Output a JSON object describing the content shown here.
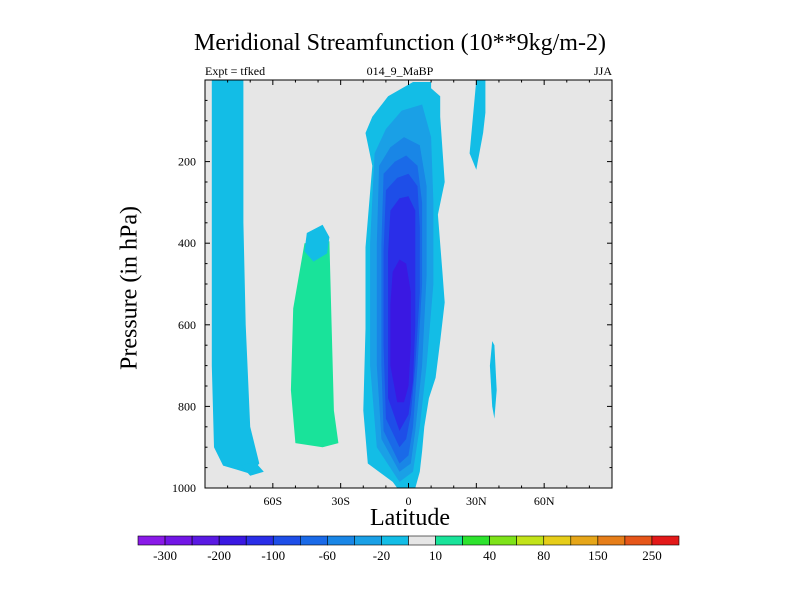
{
  "header": {
    "title": "Meridional Streamfunction (10**9kg/m-2)",
    "left": "Expt = tfked",
    "center": "014_9_MaBP",
    "right": "JJA"
  },
  "chart_data": {
    "type": "heatmap",
    "title": "Meridional Streamfunction (10**9kg/m-2)",
    "xlabel": "Latitude",
    "ylabel": "Pressure (in hPa)",
    "xlim": [
      -90,
      90
    ],
    "ylim": [
      1000,
      0
    ],
    "y_inverted": true,
    "x_ticks": [
      -60,
      -30,
      0,
      30,
      60
    ],
    "x_tick_labels": [
      "60S",
      "30S",
      "0",
      "30N",
      "60N"
    ],
    "y_ticks": [
      200,
      400,
      600,
      800,
      1000
    ],
    "y_tick_labels": [
      "200",
      "400",
      "600",
      "800",
      "1000"
    ],
    "grid": false,
    "background": "#e6e6e6",
    "colorbar": {
      "levels": [
        -300,
        -250,
        -200,
        -150,
        -100,
        -80,
        -60,
        -40,
        -20,
        -10,
        10,
        20,
        40,
        60,
        80,
        100,
        150,
        200,
        250,
        300
      ],
      "colors": [
        "#8a1ae8",
        "#7216e6",
        "#5a19e3",
        "#3a18e2",
        "#2a2ee8",
        "#1e4ee8",
        "#1a6ae8",
        "#1986e6",
        "#1aa0e6",
        "#13bde6",
        "#e6e6e6",
        "#19e39a",
        "#2ee32e",
        "#7ee319",
        "#c2e319",
        "#e6cd19",
        "#e6a619",
        "#e67e19",
        "#e65619",
        "#e31919"
      ],
      "labels": [
        "-300",
        "-200",
        "-100",
        "-60",
        "-20",
        "10",
        "40",
        "80",
        "150",
        "250"
      ]
    },
    "regions": [
      {
        "name": "NH deep cell edge",
        "level": -10,
        "points": [
          [
            -5,
            1000
          ],
          [
            -7,
            985
          ],
          [
            -18,
            940
          ],
          [
            -20,
            810
          ],
          [
            -19,
            610
          ],
          [
            -19,
            410
          ],
          [
            -16,
            210
          ],
          [
            -19,
            130
          ],
          [
            -16,
            90
          ],
          [
            -9,
            40
          ],
          [
            2,
            5
          ],
          [
            10,
            5
          ],
          [
            10,
            20
          ],
          [
            14,
            40
          ],
          [
            14,
            90
          ],
          [
            16,
            250
          ],
          [
            13,
            330
          ],
          [
            15,
            470
          ],
          [
            16,
            545
          ],
          [
            14,
            640
          ],
          [
            12,
            730
          ],
          [
            9,
            780
          ],
          [
            7,
            850
          ],
          [
            6,
            910
          ],
          [
            5,
            960
          ],
          [
            3,
            1000
          ]
        ]
      },
      {
        "name": "NH deep cell -20",
        "level": -20,
        "points": [
          [
            -4,
            985
          ],
          [
            -14,
            900
          ],
          [
            -17,
            700
          ],
          [
            -17,
            400
          ],
          [
            -15,
            180
          ],
          [
            -10,
            120
          ],
          [
            -3,
            75
          ],
          [
            6,
            60
          ],
          [
            10,
            140
          ],
          [
            11,
            300
          ],
          [
            11,
            500
          ],
          [
            8,
            700
          ],
          [
            5,
            850
          ],
          [
            2,
            960
          ]
        ]
      },
      {
        "name": "NH deep cell -40",
        "level": -40,
        "points": [
          [
            -4,
            960
          ],
          [
            -12,
            880
          ],
          [
            -14,
            700
          ],
          [
            -14,
            400
          ],
          [
            -13,
            210
          ],
          [
            -8,
            165
          ],
          [
            -2,
            140
          ],
          [
            5,
            160
          ],
          [
            8,
            260
          ],
          [
            8,
            480
          ],
          [
            6,
            700
          ],
          [
            3,
            860
          ],
          [
            1,
            940
          ]
        ]
      },
      {
        "name": "NH deep cell -60",
        "level": -60,
        "points": [
          [
            -4,
            940
          ],
          [
            -11,
            860
          ],
          [
            -12,
            700
          ],
          [
            -12,
            400
          ],
          [
            -11,
            230
          ],
          [
            -6,
            200
          ],
          [
            -1,
            185
          ],
          [
            4,
            210
          ],
          [
            6,
            300
          ],
          [
            6,
            500
          ],
          [
            4,
            700
          ],
          [
            2,
            850
          ],
          [
            0,
            920
          ]
        ]
      },
      {
        "name": "NH deep cell -80",
        "level": -80,
        "points": [
          [
            -4,
            900
          ],
          [
            -10,
            830
          ],
          [
            -11,
            650
          ],
          [
            -11,
            420
          ],
          [
            -10,
            270
          ],
          [
            -5,
            240
          ],
          [
            0,
            230
          ],
          [
            4,
            260
          ],
          [
            5,
            360
          ],
          [
            5,
            520
          ],
          [
            3,
            700
          ],
          [
            1,
            820
          ],
          [
            -1,
            880
          ]
        ]
      },
      {
        "name": "NH deep cell -100",
        "level": -100,
        "points": [
          [
            -4,
            860
          ],
          [
            -9,
            780
          ],
          [
            -9,
            600
          ],
          [
            -9,
            420
          ],
          [
            -8,
            320
          ],
          [
            -4,
            290
          ],
          [
            0,
            285
          ],
          [
            3,
            320
          ],
          [
            3,
            450
          ],
          [
            3,
            600
          ],
          [
            2,
            740
          ],
          [
            0,
            820
          ]
        ]
      },
      {
        "name": "NH deep cell -150",
        "level": -150,
        "points": [
          [
            -5,
            790
          ],
          [
            -8,
            700
          ],
          [
            -8,
            550
          ],
          [
            -7,
            470
          ],
          [
            -4,
            440
          ],
          [
            -1,
            450
          ],
          [
            1,
            520
          ],
          [
            1,
            650
          ],
          [
            0,
            750
          ],
          [
            -2,
            790
          ]
        ]
      },
      {
        "name": "SH subtropical band",
        "level": -10,
        "points": [
          [
            -87,
            0
          ],
          [
            -73,
            0
          ],
          [
            -73,
            350
          ],
          [
            -72,
            600
          ],
          [
            -70,
            850
          ],
          [
            -66,
            940
          ],
          [
            -70,
            965
          ],
          [
            -76,
            955
          ],
          [
            -82,
            945
          ],
          [
            -86,
            900
          ],
          [
            -87,
            700
          ],
          [
            -87,
            400
          ]
        ]
      },
      {
        "name": "SH Ferrel lower rim",
        "level": -10,
        "points": [
          [
            -74,
            945
          ],
          [
            -68,
            935
          ],
          [
            -64,
            960
          ],
          [
            -70,
            970
          ]
        ]
      },
      {
        "name": "SH Ferrel cell",
        "level": 10,
        "points": [
          [
            -65,
            0
          ],
          [
            -60,
            0
          ],
          [
            -60,
            120
          ],
          [
            -55,
            170
          ],
          [
            -50,
            220
          ],
          [
            -30,
            230
          ],
          [
            -28,
            400
          ],
          [
            -27,
            700
          ],
          [
            -25,
            935
          ],
          [
            -30,
            955
          ],
          [
            -38,
            965
          ],
          [
            -52,
            950
          ],
          [
            -55,
            860
          ],
          [
            -57,
            620
          ],
          [
            -61,
            400
          ],
          [
            -63,
            200
          ]
        ]
      },
      {
        "name": "SH Ferrel core",
        "level": 20,
        "points": [
          [
            -46,
            400
          ],
          [
            -35,
            395
          ],
          [
            -34,
            600
          ],
          [
            -33,
            810
          ],
          [
            -31,
            890
          ],
          [
            -38,
            900
          ],
          [
            -50,
            890
          ],
          [
            -52,
            760
          ],
          [
            -51,
            560
          ]
        ]
      },
      {
        "name": "Tropical upper blob",
        "level": -10,
        "points": [
          [
            -45,
            375
          ],
          [
            -38,
            355
          ],
          [
            -35,
            385
          ],
          [
            -36,
            425
          ],
          [
            -42,
            445
          ],
          [
            -46,
            420
          ]
        ]
      },
      {
        "name": "NH upper positive",
        "level": 10,
        "points": [
          [
            30,
            0
          ],
          [
            38,
            0
          ],
          [
            36,
            50
          ],
          [
            34,
            120
          ],
          [
            31,
            140
          ],
          [
            30,
            60
          ]
        ]
      },
      {
        "name": "NH upper negative",
        "level": -10,
        "points": [
          [
            30,
            0
          ],
          [
            34,
            0
          ],
          [
            34,
            80
          ],
          [
            33,
            130
          ],
          [
            30,
            220
          ],
          [
            27,
            180
          ]
        ]
      },
      {
        "name": "NH polar negative thin",
        "level": -10,
        "points": [
          [
            37,
            640
          ],
          [
            38,
            650
          ],
          [
            39,
            760
          ],
          [
            38,
            830
          ],
          [
            37,
            800
          ],
          [
            36,
            700
          ]
        ]
      },
      {
        "name": "NH polar positive thin",
        "level": 10,
        "points": [
          [
            48,
            330
          ],
          [
            49,
            340
          ],
          [
            49,
            600
          ],
          [
            49,
            800
          ],
          [
            48,
            830
          ],
          [
            47,
            700
          ],
          [
            47,
            500
          ]
        ]
      }
    ]
  }
}
